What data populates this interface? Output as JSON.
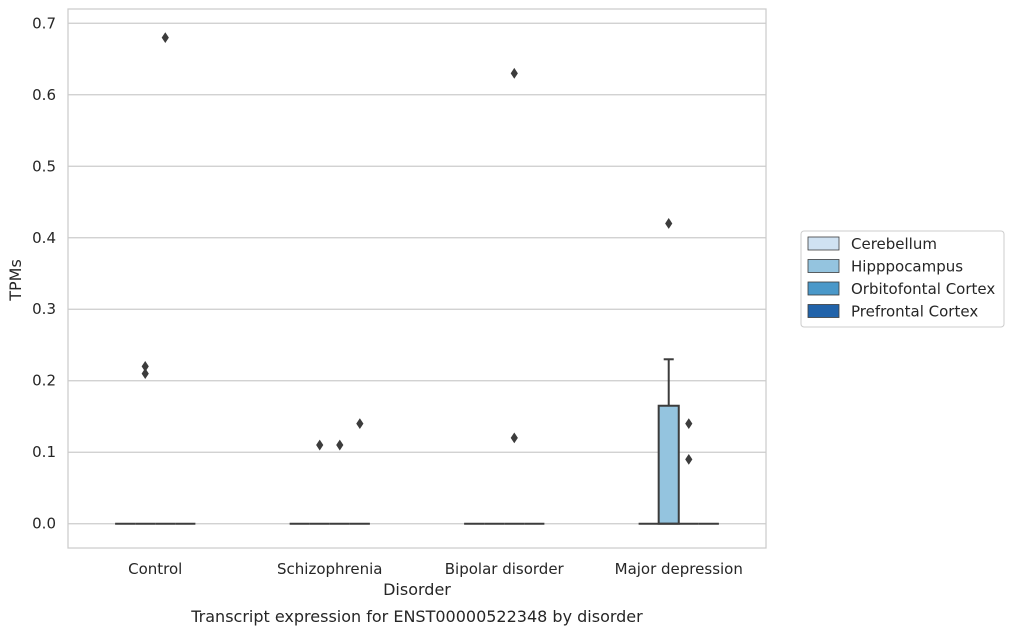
{
  "chart_data": {
    "type": "box",
    "xlabel": "Disorder",
    "ylabel": "TPMs",
    "caption": "Transcript expression for ENST00000522348 by disorder",
    "ylim": [
      -0.034,
      0.72
    ],
    "yticks": [
      0.0,
      0.1,
      0.2,
      0.3,
      0.4,
      0.5,
      0.6,
      0.7
    ],
    "ytick_labels": [
      "0.0",
      "0.1",
      "0.2",
      "0.3",
      "0.4",
      "0.5",
      "0.6",
      "0.7"
    ],
    "grid": true,
    "legend_placement": "right",
    "categories": [
      "Control",
      "Schizophrenia",
      "Bipolar disorder",
      "Major depression"
    ],
    "series": [
      {
        "name": "Cerebellum",
        "color": "#d0e2f2"
      },
      {
        "name": "Hipppocampus",
        "color": "#94c4df"
      },
      {
        "name": "Orbitofontal Cortex",
        "color": "#4a98c9"
      },
      {
        "name": "Prefrontal Cortex",
        "color": "#2163aa"
      }
    ],
    "boxes": [
      {
        "category": "Control",
        "series": "Cerebellum",
        "min": 0,
        "q1": 0,
        "median": 0,
        "q3": 0,
        "max": 0,
        "outliers": []
      },
      {
        "category": "Control",
        "series": "Hipppocampus",
        "min": 0,
        "q1": 0,
        "median": 0,
        "q3": 0,
        "max": 0,
        "outliers": [
          0.22,
          0.21
        ]
      },
      {
        "category": "Control",
        "series": "Orbitofontal Cortex",
        "min": 0,
        "q1": 0,
        "median": 0,
        "q3": 0,
        "max": 0,
        "outliers": [
          0.68
        ]
      },
      {
        "category": "Control",
        "series": "Prefrontal Cortex",
        "min": 0,
        "q1": 0,
        "median": 0,
        "q3": 0,
        "max": 0,
        "outliers": []
      },
      {
        "category": "Schizophrenia",
        "series": "Cerebellum",
        "min": 0,
        "q1": 0,
        "median": 0,
        "q3": 0,
        "max": 0,
        "outliers": []
      },
      {
        "category": "Schizophrenia",
        "series": "Hipppocampus",
        "min": 0,
        "q1": 0,
        "median": 0,
        "q3": 0,
        "max": 0,
        "outliers": [
          0.11
        ]
      },
      {
        "category": "Schizophrenia",
        "series": "Orbitofontal Cortex",
        "min": 0,
        "q1": 0,
        "median": 0,
        "q3": 0,
        "max": 0,
        "outliers": [
          0.11
        ]
      },
      {
        "category": "Schizophrenia",
        "series": "Prefrontal Cortex",
        "min": 0,
        "q1": 0,
        "median": 0,
        "q3": 0,
        "max": 0,
        "outliers": [
          0.14
        ]
      },
      {
        "category": "Bipolar disorder",
        "series": "Cerebellum",
        "min": 0,
        "q1": 0,
        "median": 0,
        "q3": 0,
        "max": 0,
        "outliers": []
      },
      {
        "category": "Bipolar disorder",
        "series": "Hipppocampus",
        "min": 0,
        "q1": 0,
        "median": 0,
        "q3": 0,
        "max": 0,
        "outliers": []
      },
      {
        "category": "Bipolar disorder",
        "series": "Orbitofontal Cortex",
        "min": 0,
        "q1": 0,
        "median": 0,
        "q3": 0,
        "max": 0,
        "outliers": [
          0.63,
          0.12
        ]
      },
      {
        "category": "Bipolar disorder",
        "series": "Prefrontal Cortex",
        "min": 0,
        "q1": 0,
        "median": 0,
        "q3": 0,
        "max": 0,
        "outliers": []
      },
      {
        "category": "Major depression",
        "series": "Cerebellum",
        "min": 0,
        "q1": 0,
        "median": 0,
        "q3": 0,
        "max": 0,
        "outliers": []
      },
      {
        "category": "Major depression",
        "series": "Hipppocampus",
        "min": 0,
        "q1": 0,
        "median": 0,
        "q3": 0.165,
        "max": 0.23,
        "outliers": [
          0.42
        ]
      },
      {
        "category": "Major depression",
        "series": "Orbitofontal Cortex",
        "min": 0,
        "q1": 0,
        "median": 0,
        "q3": 0,
        "max": 0,
        "outliers": [
          0.14,
          0.09
        ]
      },
      {
        "category": "Major depression",
        "series": "Prefrontal Cortex",
        "min": 0,
        "q1": 0,
        "median": 0,
        "q3": 0,
        "max": 0,
        "outliers": []
      }
    ]
  }
}
